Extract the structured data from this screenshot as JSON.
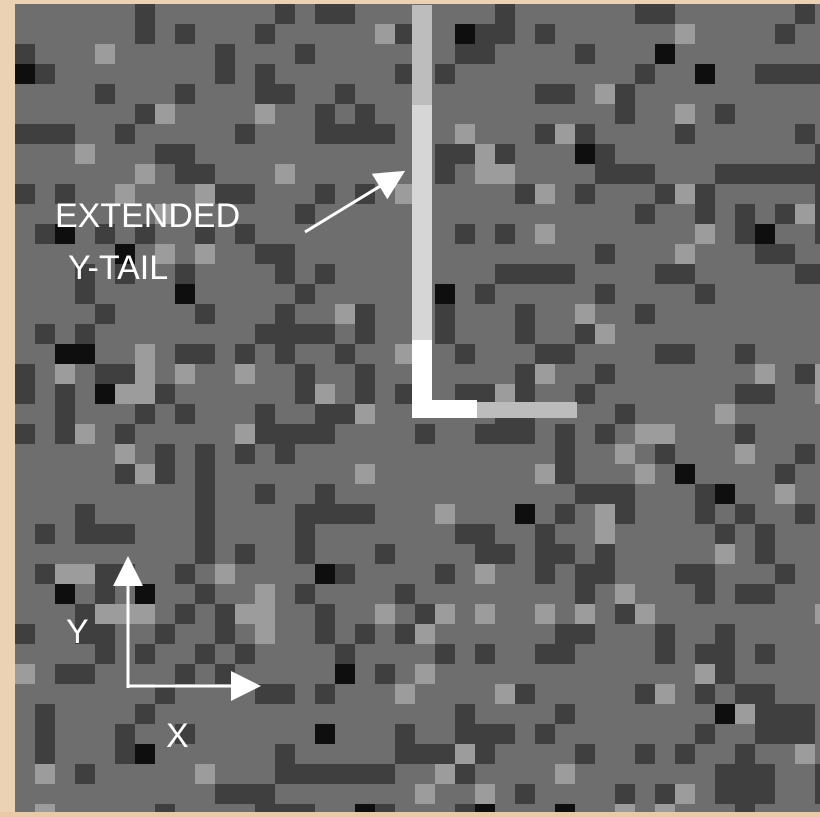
{
  "annotations": {
    "label_line1": "EXTENDED",
    "label_line2": "Y-TAIL",
    "y_axis": "Y",
    "x_axis": "X"
  }
}
